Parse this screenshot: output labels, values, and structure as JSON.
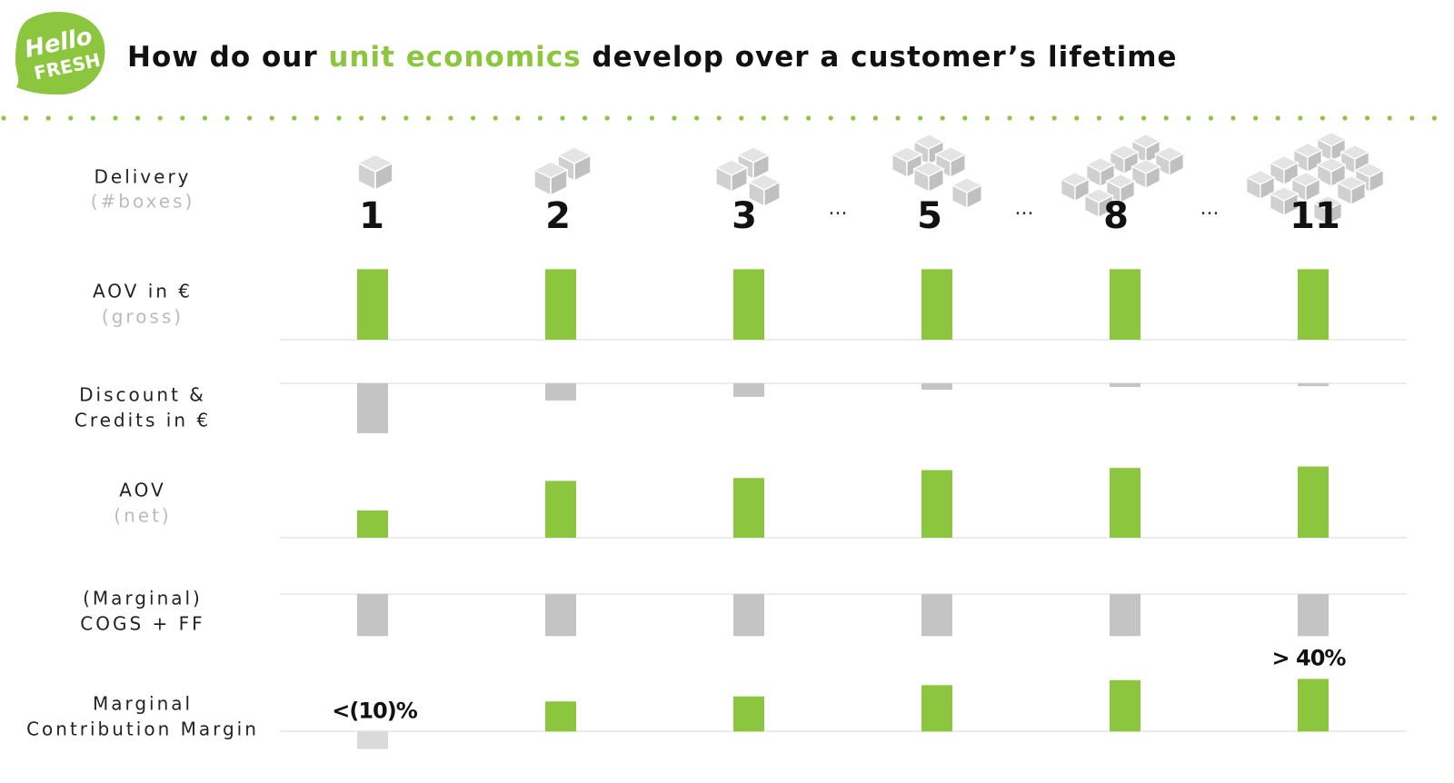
{
  "logo": {
    "line1": "Hello",
    "line2": "FRESH"
  },
  "title_parts": [
    "How do our ",
    "unit economics",
    " develop over a customer’s lifetime"
  ],
  "delivery": {
    "label": "Delivery",
    "sublabel": "(#boxes)",
    "counts": [
      "1",
      "2",
      "3",
      "5",
      "8",
      "11"
    ],
    "ellipsis": "..."
  },
  "chart_data": [
    {
      "type": "bar",
      "label_lines": [
        "AOV in €"
      ],
      "sublabel": "(gross)",
      "direction": "up",
      "color": "#8cc63f",
      "values": [
        100,
        100,
        100,
        100,
        100,
        100
      ],
      "ylim": [
        0,
        103
      ]
    },
    {
      "type": "bar",
      "label_lines": [
        "Discount &",
        "Credits in €"
      ],
      "direction": "down",
      "color": "#c4c4c4",
      "values": [
        70,
        24,
        19,
        9,
        5,
        4
      ],
      "ylim": [
        0,
        102
      ]
    },
    {
      "type": "bar",
      "label_lines": [
        "AOV"
      ],
      "sublabel": "(net)",
      "direction": "up",
      "color": "#8cc63f",
      "values": [
        38,
        79,
        83,
        94,
        97,
        99
      ],
      "ylim": [
        0,
        101
      ]
    },
    {
      "type": "bar",
      "label_lines": [
        "(Marginal)",
        "COGS + FF"
      ],
      "direction": "down",
      "color": "#c4c4c4",
      "values": [
        59,
        59,
        59,
        59,
        59,
        59
      ],
      "ylim": [
        0,
        102
      ]
    },
    {
      "type": "bar",
      "label_lines": [
        "Marginal",
        "Contribution Margin"
      ],
      "direction": "up",
      "color": "#8cc63f",
      "negative_color": "#dadada",
      "values": [
        -14,
        24,
        28,
        37,
        41,
        42
      ],
      "value_labels": [
        "<(10)%",
        null,
        null,
        null,
        null,
        "> 40%"
      ],
      "ylim": [
        -15,
        43
      ]
    }
  ]
}
